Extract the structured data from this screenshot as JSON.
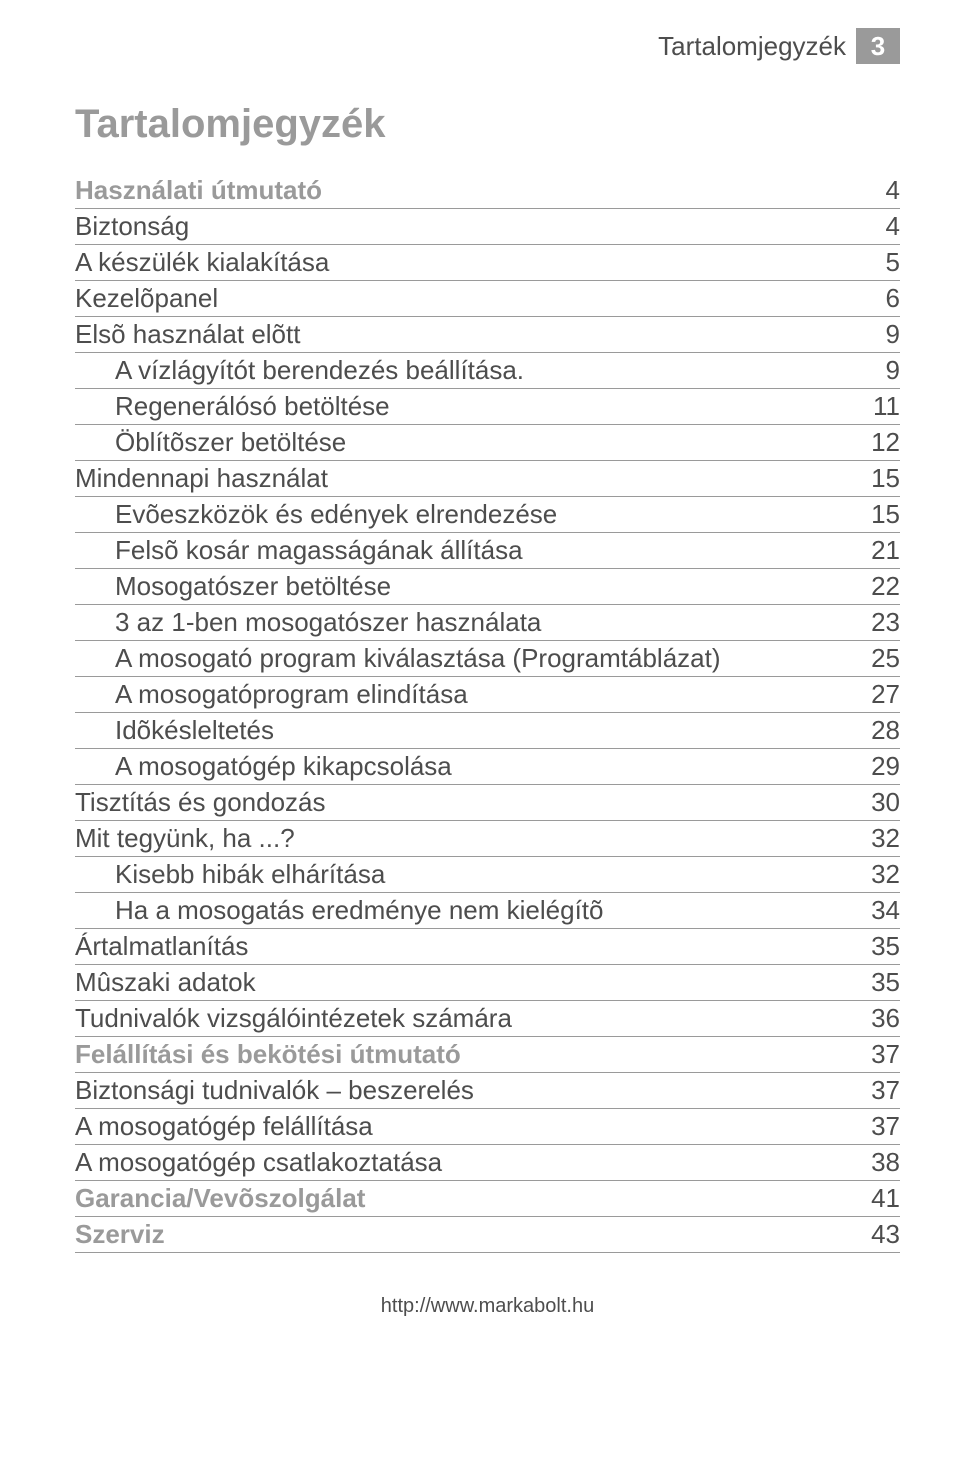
{
  "header": {
    "label": "Tartalomjegyzék",
    "page_number": "3"
  },
  "title": "Tartalomjegyzék",
  "footer": "http://www.markabolt.hu",
  "colors": {
    "gray_text": "#9a9a9a",
    "body_text": "#4d4d4d",
    "badge_bg": "#9a9a9a",
    "badge_text": "#ffffff",
    "rule": "#9a9a9a",
    "background": "#ffffff"
  },
  "typography": {
    "title_fontsize": 40,
    "section_fontsize": 26,
    "row_fontsize": 26,
    "footer_fontsize": 20
  },
  "toc": [
    {
      "label": "Használati útmutató",
      "page": "4",
      "level": 0,
      "section": true
    },
    {
      "label": "Biztonság",
      "page": "4",
      "level": 0
    },
    {
      "label": "A készülék kialakítása",
      "page": "5",
      "level": 0
    },
    {
      "label": "Kezelõpanel",
      "page": "6",
      "level": 0
    },
    {
      "label": "Elsõ használat elõtt",
      "page": "9",
      "level": 0
    },
    {
      "label": "A vízlágyítót berendezés beállítása.",
      "page": "9",
      "level": 1
    },
    {
      "label": "Regenerálósó betöltése",
      "page": "11",
      "level": 1
    },
    {
      "label": "Öblítõszer betöltése",
      "page": "12",
      "level": 1
    },
    {
      "label": "Mindennapi használat",
      "page": "15",
      "level": 0
    },
    {
      "label": "Evõeszközök és edények elrendezése",
      "page": "15",
      "level": 1
    },
    {
      "label": "Felsõ kosár magasságának állítása",
      "page": "21",
      "level": 1
    },
    {
      "label": "Mosogatószer betöltése",
      "page": "22",
      "level": 1
    },
    {
      "label": "3 az 1-ben mosogatószer használata",
      "page": "23",
      "level": 1
    },
    {
      "label": "A mosogató program kiválasztása (Programtáblázat)",
      "page": "25",
      "level": 1
    },
    {
      "label": "A mosogatóprogram elindítása",
      "page": "27",
      "level": 1
    },
    {
      "label": "Idõkésleltetés",
      "page": "28",
      "level": 1
    },
    {
      "label": "A mosogatógép kikapcsolása",
      "page": "29",
      "level": 1
    },
    {
      "label": "Tisztítás és gondozás",
      "page": "30",
      "level": 0
    },
    {
      "label": "Mit tegyünk, ha ...?",
      "page": "32",
      "level": 0
    },
    {
      "label": "Kisebb hibák elhárítása",
      "page": "32",
      "level": 1
    },
    {
      "label": "Ha a mosogatás eredménye nem kielégítõ",
      "page": "34",
      "level": 1
    },
    {
      "label": "Ártalmatlanítás",
      "page": "35",
      "level": 0
    },
    {
      "label": "Mûszaki adatok",
      "page": "35",
      "level": 0
    },
    {
      "label": "Tudnivalók vizsgálóintézetek számára",
      "page": "36",
      "level": 0
    },
    {
      "label": "Felállítási és bekötési útmutató",
      "page": "37",
      "level": 0,
      "section": true
    },
    {
      "label": "Biztonsági tudnivalók – beszerelés",
      "page": "37",
      "level": 0
    },
    {
      "label": "A mosogatógép felállítása",
      "page": "37",
      "level": 0
    },
    {
      "label": "A mosogatógép csatlakoztatása",
      "page": "38",
      "level": 0
    },
    {
      "label": "Garancia/Vevõszolgálat",
      "page": "41",
      "level": 0,
      "section": true
    },
    {
      "label": "Szerviz",
      "page": "43",
      "level": 0,
      "section": true
    }
  ]
}
